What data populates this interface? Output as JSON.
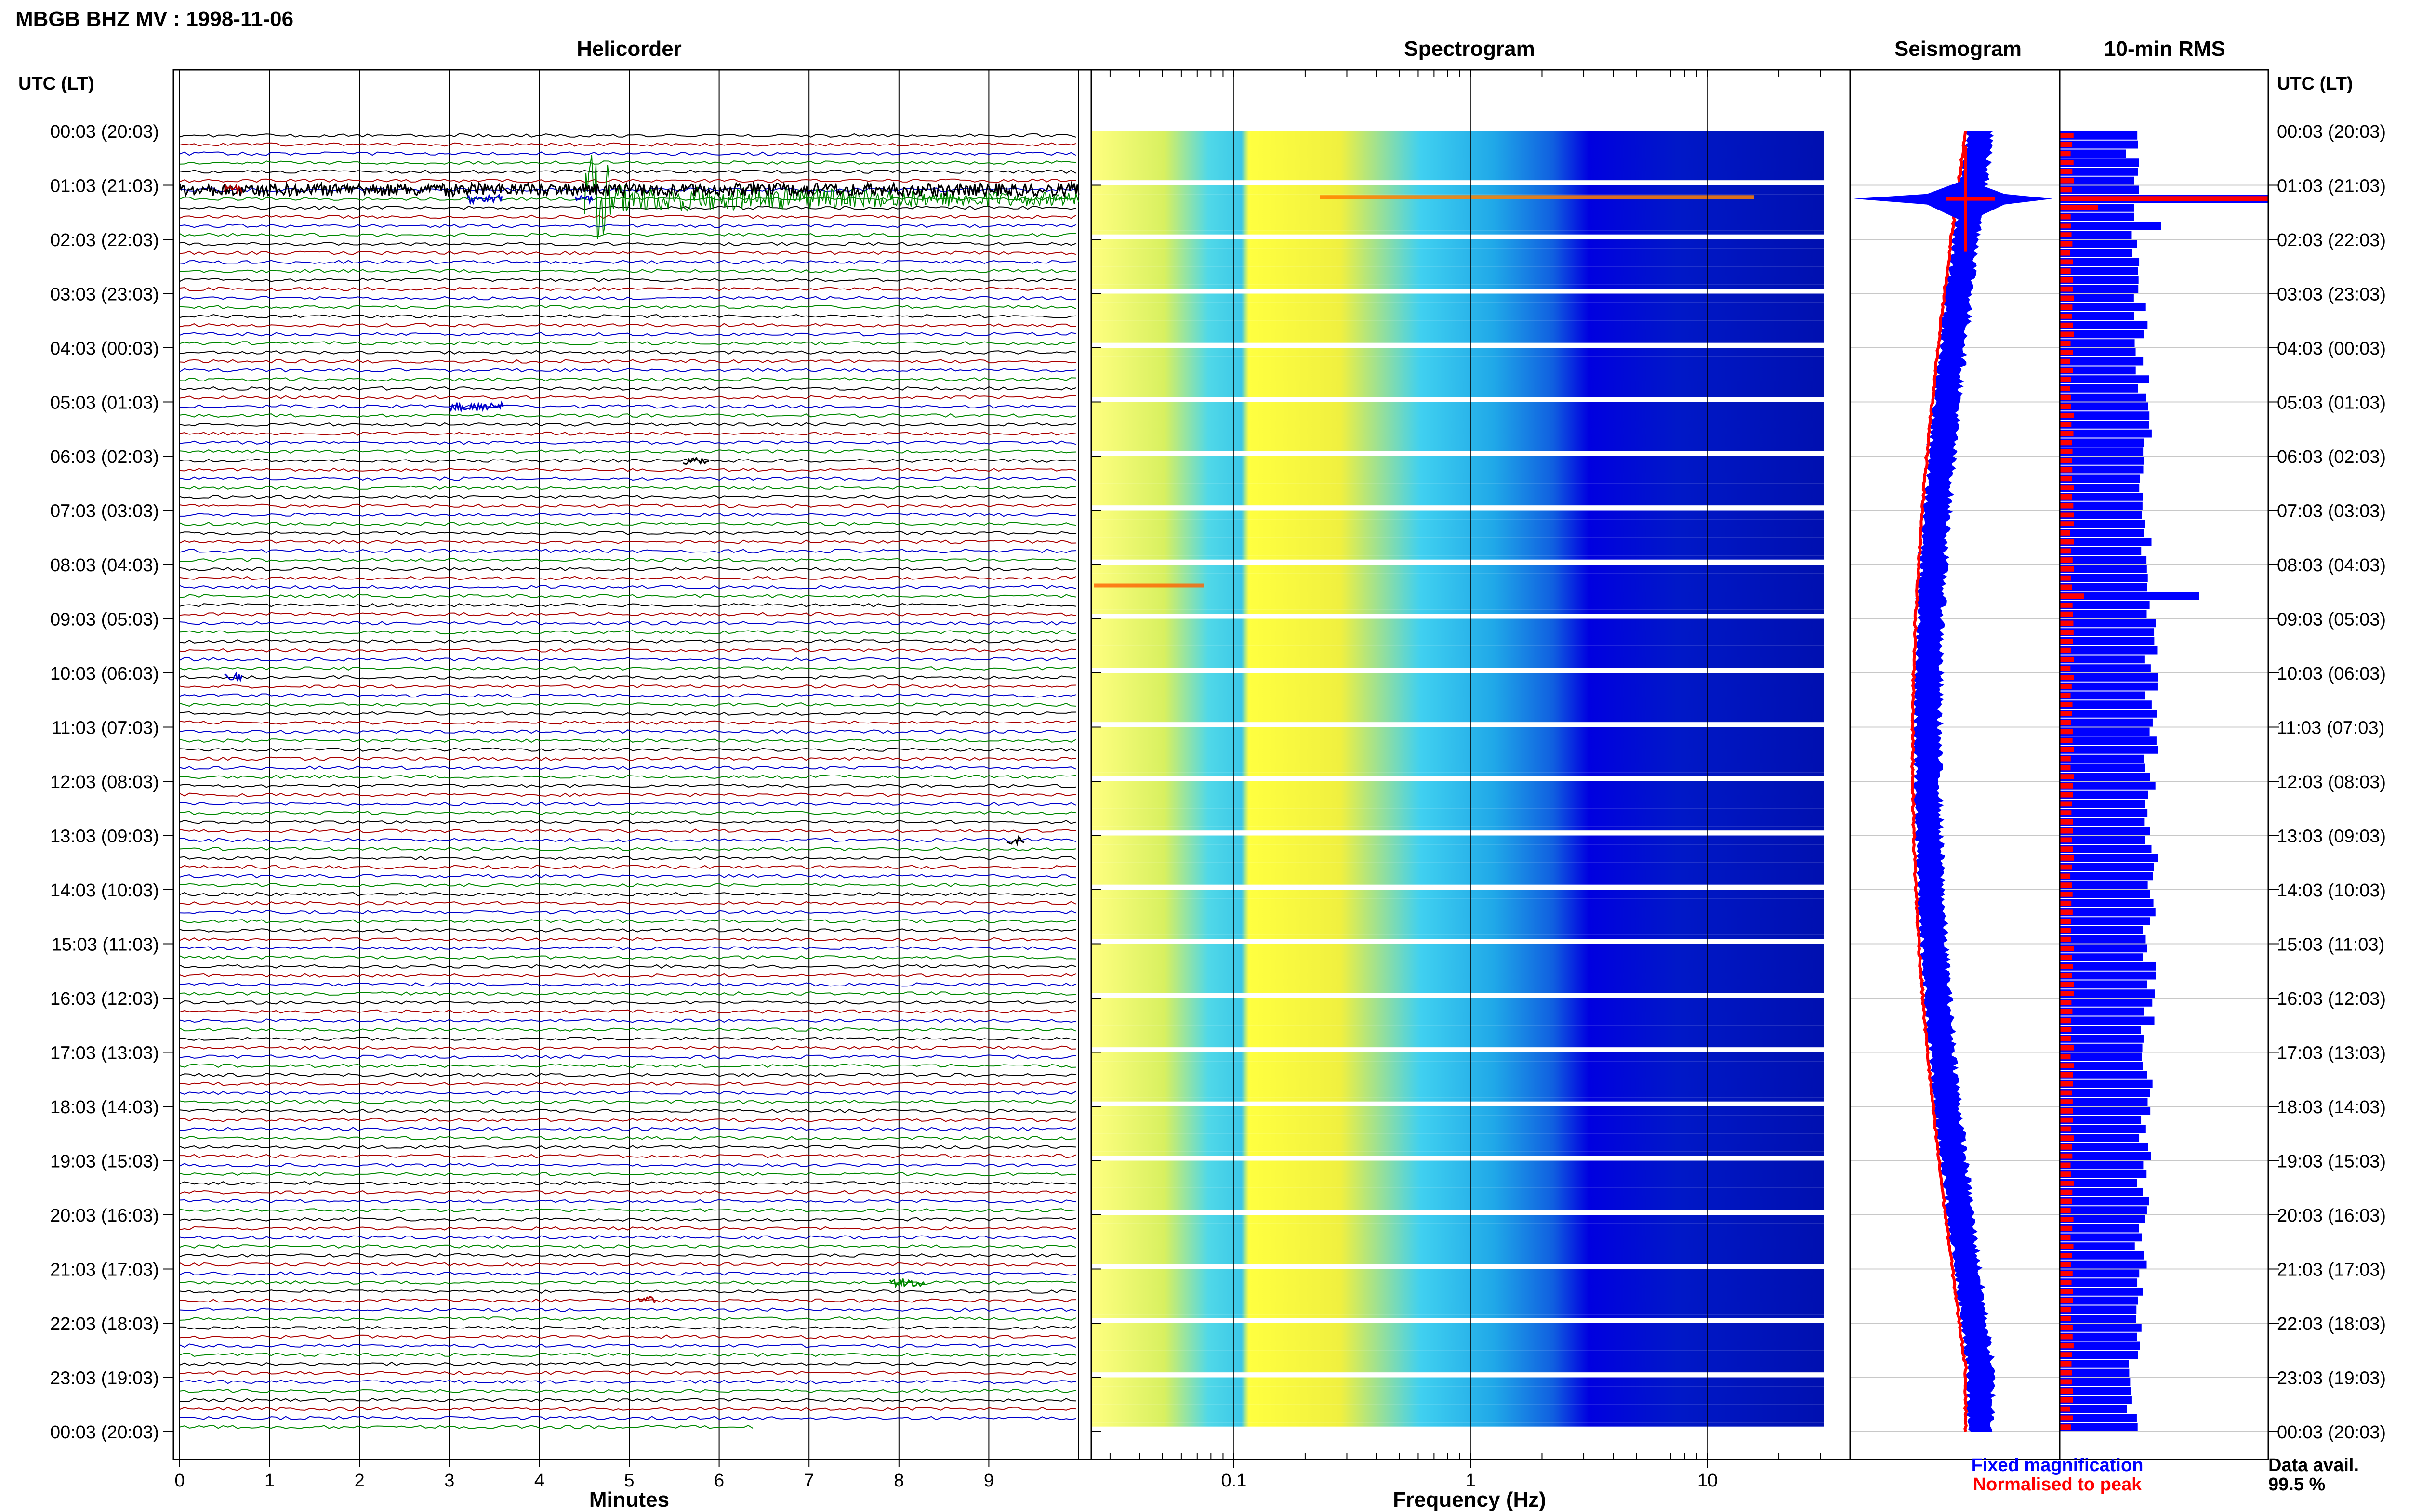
{
  "figure_title": "MBGB BHZ MV : 1998-11-06",
  "panels": {
    "helicorder": "Helicorder",
    "spectrogram": "Spectrogram",
    "seismogram": "Seismogram",
    "rms": "10-min RMS"
  },
  "time_axis_label": "UTC (LT)",
  "legend": {
    "fixed": "Fixed magnification",
    "normalised": "Normalised to peak",
    "fixed_color": "#0000ff",
    "normalised_color": "#ff0000"
  },
  "data_avail": {
    "label": "Data avail.",
    "value": "99.5 %"
  },
  "chart_data": [
    {
      "type": "line",
      "panel": "Helicorder",
      "xlabel": "Minutes",
      "x_ticks": [
        "0",
        "1",
        "2",
        "3",
        "4",
        "5",
        "6",
        "7",
        "8",
        "9"
      ],
      "xlim": [
        0,
        10
      ],
      "ylabel": "UTC (LT)",
      "y_tick_labels": [
        "00:03 (20:03)",
        "01:03 (21:03)",
        "02:03 (22:03)",
        "03:03 (23:03)",
        "04:03 (00:03)",
        "05:03 (01:03)",
        "06:03 (02:03)",
        "07:03 (03:03)",
        "08:03 (04:03)",
        "09:03 (05:03)",
        "10:03 (06:03)",
        "11:03 (07:03)",
        "12:03 (08:03)",
        "13:03 (09:03)",
        "14:03 (10:03)",
        "15:03 (11:03)",
        "16:03 (12:03)",
        "17:03 (13:03)",
        "18:03 (14:03)",
        "19:03 (15:03)",
        "20:03 (16:03)",
        "21:03 (17:03)",
        "22:03 (18:03)",
        "23:03 (19:03)",
        "00:03 (20:03)"
      ],
      "trace_colors": [
        "#000000",
        "#aa0000",
        "#0000cc",
        "#008800"
      ],
      "events": [
        {
          "row": 7,
          "minute_start": 4.5,
          "minute_end": 10,
          "amplitude": "large",
          "color": "#008800"
        },
        {
          "row": 6,
          "minute_start": 0,
          "minute_end": 10,
          "amplitude": "medium",
          "color": "#000000"
        },
        {
          "row": 6,
          "minute_start": 0.5,
          "minute_end": 0.7,
          "amplitude": "small",
          "color": "#aa0000"
        },
        {
          "row": 7,
          "minute_start": 3.2,
          "minute_end": 3.6,
          "amplitude": "small",
          "color": "#0000cc"
        },
        {
          "row": 7,
          "minute_start": 4.4,
          "minute_end": 4.6,
          "amplitude": "small",
          "color": "#0000cc"
        },
        {
          "row": 30,
          "minute_start": 3.0,
          "minute_end": 3.6,
          "amplitude": "small",
          "color": "#0000cc"
        },
        {
          "row": 36,
          "minute_start": 5.6,
          "minute_end": 5.9,
          "amplitude": "small",
          "color": "#000000"
        },
        {
          "row": 60,
          "minute_start": 0.5,
          "minute_end": 0.7,
          "amplitude": "small",
          "color": "#0000cc"
        },
        {
          "row": 78,
          "minute_start": 9.2,
          "minute_end": 9.4,
          "amplitude": "small",
          "color": "#000000"
        },
        {
          "row": 127,
          "minute_start": 7.9,
          "minute_end": 8.3,
          "amplitude": "small",
          "color": "#008800"
        },
        {
          "row": 129,
          "minute_start": 5.1,
          "minute_end": 5.3,
          "amplitude": "small",
          "color": "#aa0000"
        }
      ]
    },
    {
      "type": "heatmap",
      "panel": "Spectrogram",
      "xlabel": "Frequency (Hz)",
      "x_scale": "log",
      "xlim": [
        0.025,
        40
      ],
      "x_ticks": [
        0.1,
        1,
        10
      ],
      "x_tick_labels": [
        "0.1",
        "1",
        "10"
      ],
      "colormap": "jet"
    },
    {
      "type": "line",
      "panel": "Seismogram",
      "series": [
        {
          "name": "Fixed magnification",
          "color": "#0000ff"
        },
        {
          "name": "Normalised to peak",
          "color": "#ff0000"
        }
      ]
    },
    {
      "type": "bar",
      "panel": "10-min RMS",
      "orientation": "horizontal",
      "series": [
        {
          "name": "Fixed magnification",
          "color": "#0000ff"
        },
        {
          "name": "Normalised to peak",
          "color": "#ff0000"
        }
      ]
    }
  ]
}
